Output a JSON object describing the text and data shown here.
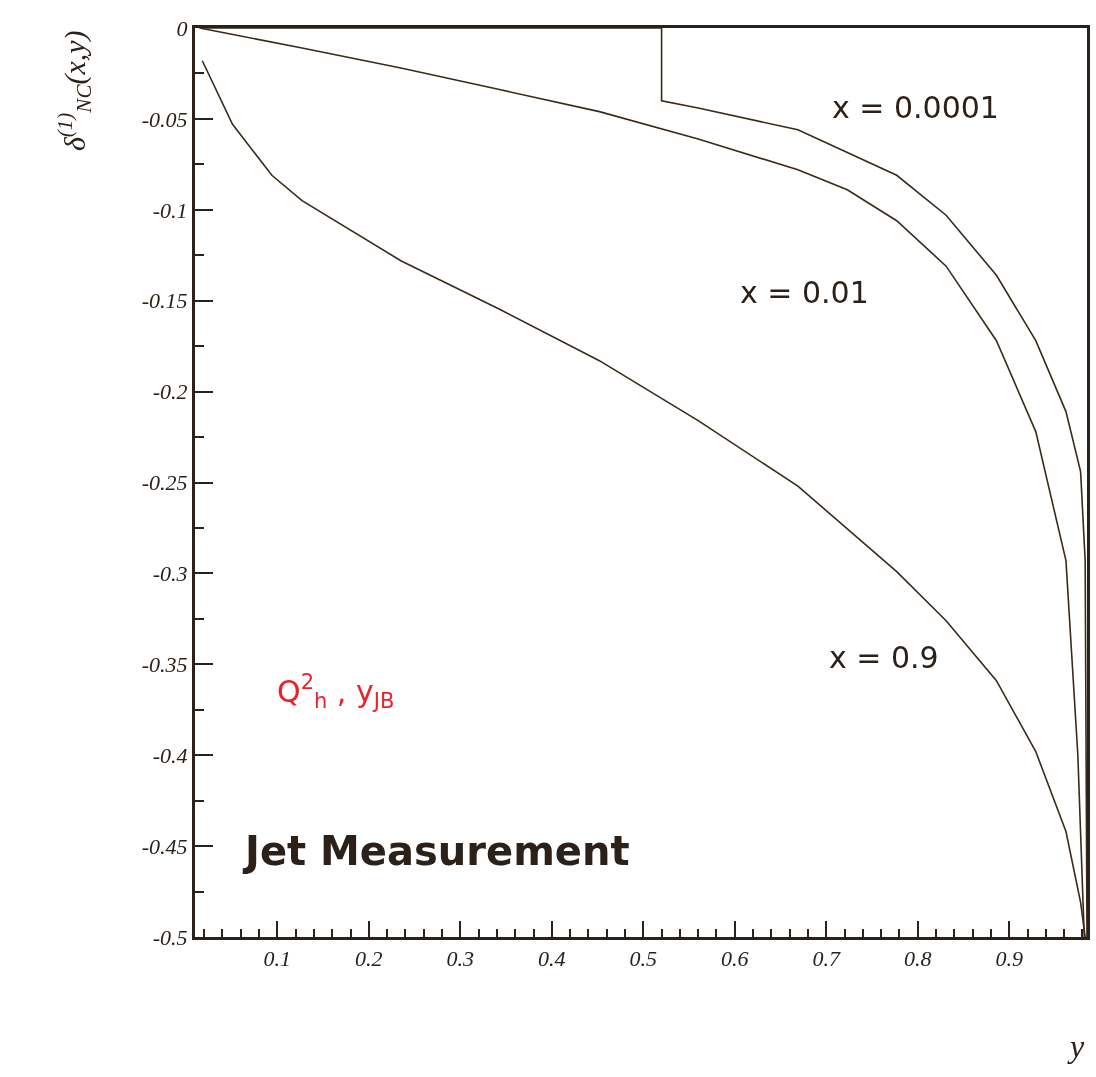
{
  "chart_data": {
    "type": "line",
    "xlabel": "y",
    "ylabel": "δ$^{(1)}$$_{NC}$(x,y)",
    "series": [
      {
        "color": "#3a2a1a",
        "x": [
          0.015,
          0.52,
          0.52,
          0.56,
          0.669,
          0.777,
          0.831,
          0.886,
          0.929,
          0.962,
          0.978,
          0.983,
          0.985
        ],
        "values": [
          0,
          0,
          -0.04,
          -0.044,
          -0.056,
          -0.081,
          -0.103,
          -0.136,
          -0.172,
          -0.211,
          -0.244,
          -0.293,
          -0.5
        ]
      },
      {
        "color": "#3a2a1a",
        "x": [
          0.015,
          0.127,
          0.235,
          0.344,
          0.452,
          0.56,
          0.669,
          0.723,
          0.777,
          0.831,
          0.886,
          0.929,
          0.962,
          0.975,
          0.982
        ],
        "values": [
          0,
          -0.011,
          -0.022,
          -0.034,
          -0.046,
          -0.061,
          -0.078,
          -0.089,
          -0.106,
          -0.131,
          -0.172,
          -0.222,
          -0.293,
          -0.4,
          -0.5
        ]
      },
      {
        "color": "#3a2a1a",
        "x": [
          0.018,
          0.051,
          0.094,
          0.127,
          0.235,
          0.344,
          0.452,
          0.56,
          0.669,
          0.777,
          0.831,
          0.886,
          0.929,
          0.962,
          0.978,
          0.983
        ],
        "values": [
          -0.018,
          -0.053,
          -0.081,
          -0.095,
          -0.128,
          -0.155,
          -0.183,
          -0.216,
          -0.252,
          -0.299,
          -0.326,
          -0.359,
          -0.398,
          -0.442,
          -0.481,
          -0.5
        ]
      }
    ],
    "annotations": [
      "x = 0.0001",
      "x = 0.01",
      "x = 0.9",
      "Jet Measurement",
      "Q$^{2}$$_{h}$ , y$_{JB}$"
    ],
    "xlim": [
      0.01,
      0.985
    ],
    "ylim": [
      -0.5,
      0
    ],
    "xticks": [
      {
        "value": 0.02,
        "label": null
      },
      {
        "value": 0.04,
        "label": null
      },
      {
        "value": 0.06,
        "label": null
      },
      {
        "value": 0.08,
        "label": null
      },
      0.1,
      {
        "value": 0.12,
        "label": null
      },
      {
        "value": 0.14,
        "label": null
      },
      {
        "value": 0.16,
        "label": null
      },
      {
        "value": 0.18,
        "label": null
      },
      0.2,
      {
        "value": 0.22,
        "label": null
      },
      {
        "value": 0.24,
        "label": null
      },
      {
        "value": 0.26,
        "label": null
      },
      {
        "value": 0.28,
        "label": null
      },
      0.3,
      {
        "value": 0.32,
        "label": null
      },
      {
        "value": 0.34,
        "label": null
      },
      {
        "value": 0.36,
        "label": null
      },
      {
        "value": 0.38,
        "label": null
      },
      0.4,
      {
        "value": 0.42,
        "label": null
      },
      {
        "value": 0.44,
        "label": null
      },
      {
        "value": 0.46,
        "label": null
      },
      {
        "value": 0.48,
        "label": null
      },
      0.5,
      {
        "value": 0.52,
        "label": null
      },
      {
        "value": 0.54,
        "label": null
      },
      {
        "value": 0.56,
        "label": null
      },
      {
        "value": 0.58,
        "label": null
      },
      0.6,
      {
        "value": 0.62,
        "label": null
      },
      {
        "value": 0.64,
        "label": null
      },
      {
        "value": 0.66,
        "label": null
      },
      {
        "value": 0.68,
        "label": null
      },
      0.7,
      {
        "value": 0.72,
        "label": null
      },
      {
        "value": 0.74,
        "label": null
      },
      {
        "value": 0.76,
        "label": null
      },
      {
        "value": 0.78,
        "label": null
      },
      0.8,
      {
        "value": 0.82,
        "label": null
      },
      {
        "value": 0.84,
        "label": null
      },
      {
        "value": 0.86,
        "label": null
      },
      {
        "value": 0.88,
        "label": null
      },
      0.9,
      {
        "value": 0.92,
        "label": null
      },
      {
        "value": 0.94,
        "label": null
      },
      {
        "value": 0.96,
        "label": null
      },
      {
        "value": 0.98,
        "label": null
      }
    ],
    "yticks": [
      -0.5,
      {
        "value": -0.475,
        "label": null
      },
      -0.45,
      {
        "value": -0.425,
        "label": null
      },
      -0.4,
      {
        "value": -0.375,
        "label": null
      },
      -0.35,
      {
        "value": -0.325,
        "label": null
      },
      -0.3,
      {
        "value": -0.275,
        "label": null
      },
      -0.25,
      {
        "value": -0.225,
        "label": null
      },
      -0.2,
      {
        "value": -0.175,
        "label": null
      },
      -0.15,
      {
        "value": -0.125,
        "label": null
      },
      -0.1,
      {
        "value": -0.075,
        "label": null
      },
      -0.05,
      {
        "value": -0.025,
        "label": null
      },
      0
    ],
    "marker": "none",
    "line_style": "solid"
  }
}
